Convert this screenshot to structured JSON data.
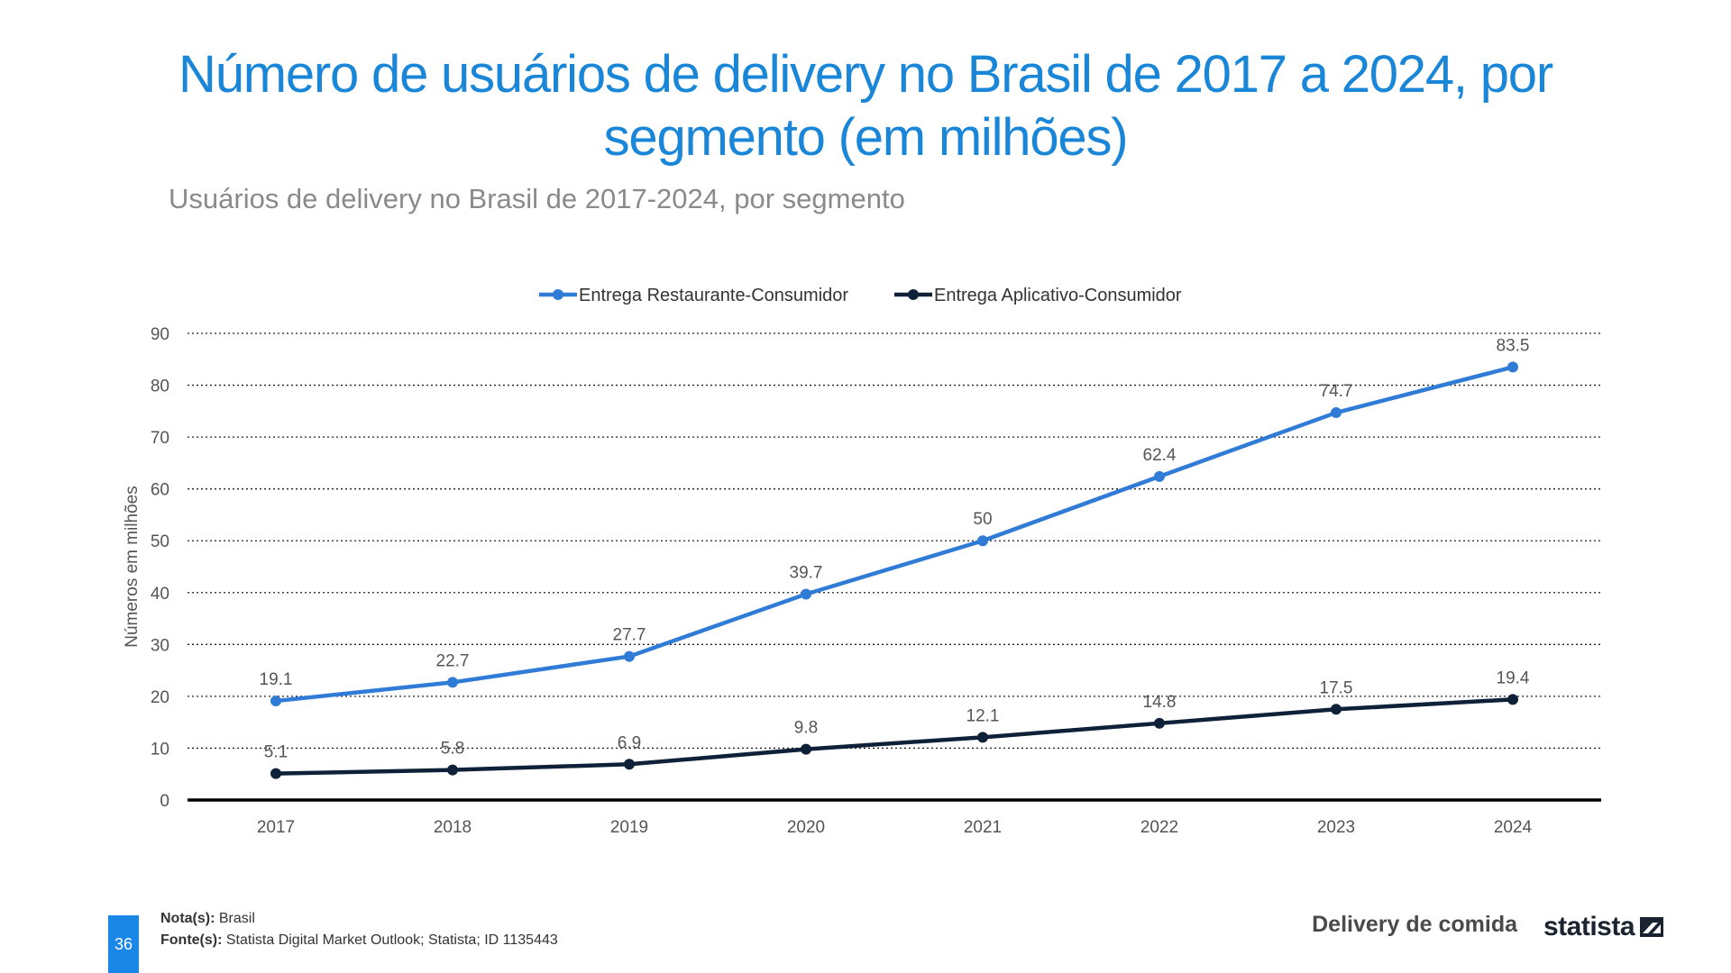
{
  "title": "Número de usuários de delivery no Brasil de 2017 a 2024, por segmento (em milhões)",
  "subtitle": "Usuários de delivery no Brasil de 2017-2024, por segmento",
  "chart_data": {
    "type": "line",
    "categories": [
      "2017",
      "2018",
      "2019",
      "2020",
      "2021",
      "2022",
      "2023",
      "2024"
    ],
    "series": [
      {
        "name": "Entrega Restaurante-Consumidor",
        "color": "#2f7bd6",
        "values": [
          19.1,
          22.7,
          27.7,
          39.7,
          50,
          62.4,
          74.7,
          83.5
        ],
        "labels": [
          "19.1",
          "22.7",
          "27.7",
          "39.7",
          "50",
          "62.4",
          "74.7",
          "83.5"
        ]
      },
      {
        "name": "Entrega Aplicativo-Consumidor",
        "color": "#0f2138",
        "values": [
          5.1,
          5.8,
          6.9,
          9.8,
          12.1,
          14.8,
          17.5,
          19.4
        ],
        "labels": [
          "5.1",
          "5.8",
          "6.9",
          "9.8",
          "12.1",
          "14.8",
          "17.5",
          "19.4"
        ]
      }
    ],
    "ylabel": "Números em milhões",
    "xlabel": "",
    "ylim": [
      0,
      90
    ],
    "yticks": [
      "0",
      "10",
      "20",
      "30",
      "40",
      "50",
      "60",
      "70",
      "80",
      "90"
    ],
    "grid": true,
    "legend_position": "top"
  },
  "footer": {
    "page_number": "36",
    "note_label": "Nota(s):",
    "note_text": " Brasil",
    "source_label": "Fonte(s):",
    "source_text": " Statista Digital Market Outlook; Statista; ID 1135443",
    "topic": "Delivery de comida",
    "brand": "statista"
  }
}
